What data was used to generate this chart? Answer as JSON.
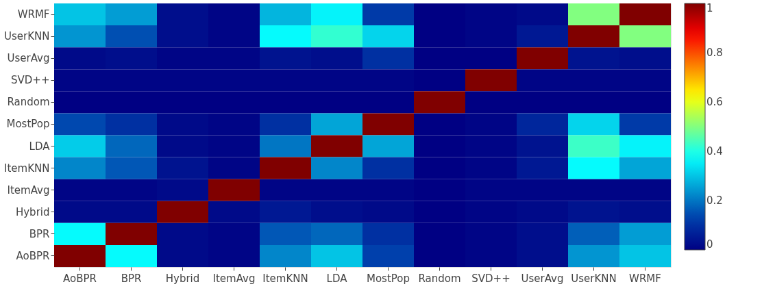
{
  "chart_data": {
    "type": "heatmap",
    "categories": [
      "AoBPR",
      "BPR",
      "Hybrid",
      "ItemAvg",
      "ItemKNN",
      "LDA",
      "MostPop",
      "Random",
      "SVD++",
      "UserAvg",
      "UserKNN",
      "WRMF"
    ],
    "y_categories": [
      "WRMF",
      "UserKNN",
      "UserAvg",
      "SVD++",
      "Random",
      "MostPop",
      "LDA",
      "ItemKNN",
      "ItemAvg",
      "Hybrid",
      "BPR",
      "AoBPR"
    ],
    "cells": [
      [
        0.3,
        0.25,
        0.03,
        0.01,
        0.28,
        0.36,
        0.12,
        0,
        0.01,
        0.02,
        0.5,
        1
      ],
      [
        0.24,
        0.15,
        0.03,
        0.01,
        0.37,
        0.42,
        0.32,
        0,
        0.01,
        0.05,
        1,
        0.5
      ],
      [
        0.02,
        0.03,
        0.01,
        0.01,
        0.04,
        0.03,
        0.1,
        0,
        0,
        1,
        0.04,
        0.03
      ],
      [
        0.01,
        0.01,
        0.01,
        0.01,
        0.01,
        0.01,
        0.01,
        0,
        1,
        0.01,
        0.01,
        0.01
      ],
      [
        0,
        0,
        0,
        0,
        0,
        0,
        0,
        1,
        0,
        0,
        0,
        0
      ],
      [
        0.14,
        0.1,
        0.02,
        0.01,
        0.1,
        0.26,
        1,
        0,
        0.01,
        0.08,
        0.32,
        0.12
      ],
      [
        0.31,
        0.18,
        0.02,
        0.01,
        0.2,
        1,
        0.26,
        0,
        0.01,
        0.04,
        0.43,
        0.36
      ],
      [
        0.22,
        0.16,
        0.04,
        0.01,
        1,
        0.22,
        0.1,
        0,
        0.01,
        0.05,
        0.37,
        0.26
      ],
      [
        0.01,
        0.01,
        0.02,
        1,
        0.01,
        0.01,
        0.01,
        0,
        0.01,
        0.01,
        0.01,
        0.01
      ],
      [
        0.02,
        0.02,
        1,
        0.02,
        0.05,
        0.03,
        0.02,
        0,
        0.01,
        0.02,
        0.04,
        0.03
      ],
      [
        0.37,
        1,
        0.02,
        0.01,
        0.16,
        0.18,
        0.1,
        0,
        0.01,
        0.03,
        0.17,
        0.25
      ],
      [
        1,
        0.37,
        0.02,
        0.01,
        0.22,
        0.3,
        0.13,
        0,
        0.01,
        0.03,
        0.24,
        0.3
      ]
    ],
    "clim": [
      0,
      1
    ],
    "cticks": [
      0,
      0.2,
      0.4,
      0.6,
      0.8,
      1
    ]
  }
}
